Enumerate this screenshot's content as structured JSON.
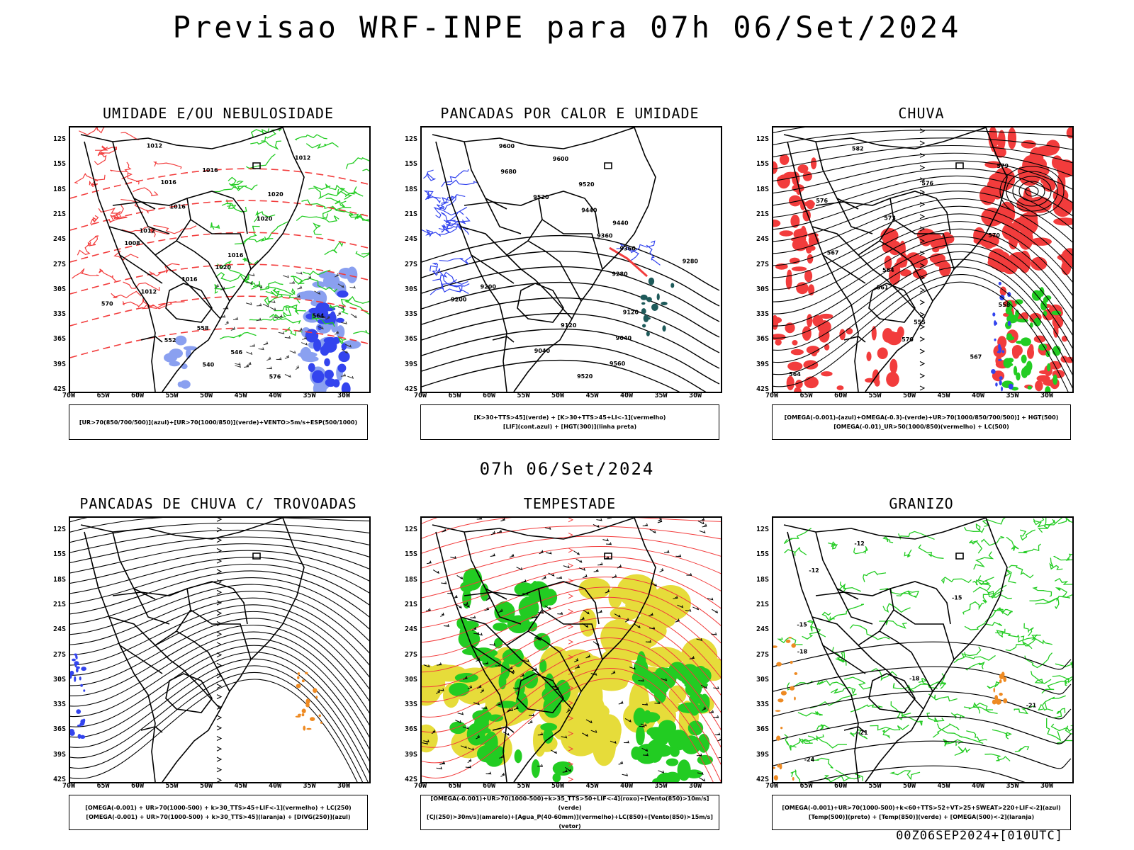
{
  "main_title": "Previsao WRF-INPE  para 07h 06/Set/2024",
  "mid_title": "07h 06/Set/2024",
  "footer": "00Z06SEP2024+[010UTC]",
  "lat_labels": [
    "12S",
    "15S",
    "18S",
    "21S",
    "24S",
    "27S",
    "30S",
    "33S",
    "36S",
    "39S",
    "42S"
  ],
  "lon_labels": [
    "70W",
    "65W",
    "60W",
    "55W",
    "50W",
    "45W",
    "40W",
    "35W",
    "30W"
  ],
  "colors": {
    "red": "#f23c3c",
    "green": "#22cc22",
    "blue": "#3344ee",
    "lightblue": "#8aa0f0",
    "yellow": "#e6dc3a",
    "orange": "#ee8a22",
    "teal": "#1e5a5a"
  },
  "panels": [
    {
      "id": "umidade",
      "title": "UMIDADE E/OU NEBULOSIDADE",
      "legend": [
        "[UR>70(850/700/500)](azul)+[UR>70(1000/850)](verde)+VENTO>5m/s+ESP(500/1000)"
      ],
      "contour_labels": [
        "1012",
        "1012",
        "1016",
        "1016",
        "1020",
        "1016",
        "1020",
        "1012",
        "1008",
        "1016",
        "1020",
        "1016",
        "1012",
        "570",
        "564",
        "558",
        "552",
        "546",
        "540",
        "576"
      ]
    },
    {
      "id": "pancadas_calor",
      "title": "PANCADAS POR CALOR E UMIDADE",
      "legend": [
        "[K>30+TTS>45](verde) + [K>30+TTS>45+LI<-1](vermelho)",
        "[LIF](cont.azul) + [HGT(300)](linha preta)"
      ],
      "contour_labels": [
        "9600",
        "9600",
        "9680",
        "9520",
        "9520",
        "9440",
        "9440",
        "9360",
        "9360",
        "9280",
        "9280",
        "9200",
        "9200",
        "9120",
        "9120",
        "9040",
        "9040",
        "9560",
        "9520"
      ]
    },
    {
      "id": "chuva",
      "title": "CHUVA",
      "legend": [
        "[OMEGA(-0.001)-(azul)+OMEGA(-0.3)-(verde)+UR>70(1000/850/700/500)] + HGT(500)",
        "[OMEGA(-0.01)_UR>50(1000/850)(vermelho) + LC(500)"
      ],
      "contour_labels": [
        "582",
        "579",
        "576",
        "576",
        "573",
        "570",
        "567",
        "564",
        "561",
        "558",
        "555",
        "570",
        "567",
        "564"
      ]
    },
    {
      "id": "trovoadas",
      "title": "PANCADAS DE CHUVA C/ TROVOADAS",
      "legend": [
        "[OMEGA(-0.001) + UR>70(1000-500) + k>30_TTS>45+LIF<-1](vermelho) + LC(250)",
        "[OMEGA(-0.001) + UR>70(1000-500) + k>30_TTS>45](laranja) + [DIVG(250)](azul)"
      ],
      "contour_labels": []
    },
    {
      "id": "tempestade",
      "title": "TEMPESTADE",
      "legend": [
        "[OMEGA(-0.001)+UR>70(1000-500)+k>35_TTS>50+LIF<-4](roxo)+[Vento(850)>10m/s](verde)",
        "[CJ(250)>30m/s](amarelo)+[Agua_P(40-60mm)](vermelho)+LC(850)+[Vento(850)>15m/s](vetor)"
      ],
      "contour_labels": []
    },
    {
      "id": "granizo",
      "title": "GRANIZO",
      "legend": [
        "[OMEGA(-0.001)+UR>70(1000-500)+k<60+TTS>52+VT>25+SWEAT>220+LIF<-2](azul)",
        "[Temp(500)](preto) + [Temp(850)](verde) + [OMEGA(500)<-2](laranja)"
      ],
      "contour_labels": [
        "-12",
        "-12",
        "-15",
        "-15",
        "-18",
        "-18",
        "-21",
        "-21",
        "-24"
      ]
    }
  ]
}
